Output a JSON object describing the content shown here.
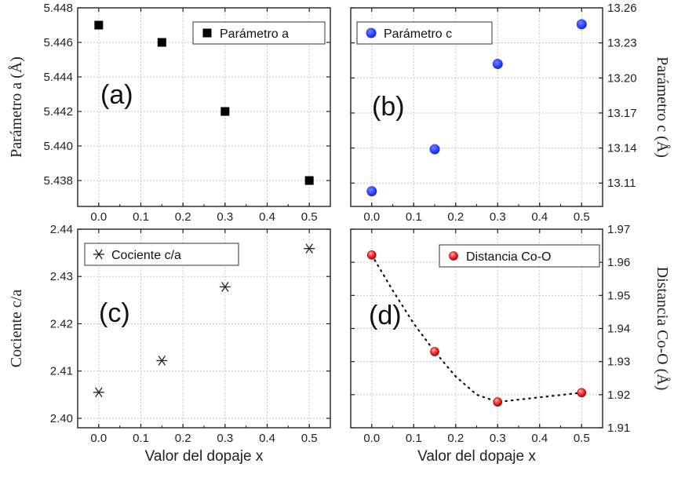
{
  "colors": {
    "panel_a": "#000000",
    "panel_b": "#0b1ff5",
    "panel_c": "#222222",
    "panel_d": "#e02020",
    "grid": "#c8c8c8"
  },
  "chart_data": [
    {
      "id": "a",
      "type": "scatter",
      "panel_label": "(a)",
      "marker": "square",
      "series": [
        {
          "name": "Parámetro a",
          "x": [
            0.0,
            0.15,
            0.3,
            0.5
          ],
          "y": [
            5.447,
            5.446,
            5.442,
            5.438
          ]
        }
      ],
      "xlabel": "",
      "ylabel": "Parámetro a (Å)",
      "xlim": [
        -0.05,
        0.55
      ],
      "ylim": [
        5.4365,
        5.448
      ],
      "xticks": [
        "0.0",
        "0.1",
        "0.2",
        "0.3",
        "0.4",
        "0.5"
      ],
      "yticks": [
        "5.438",
        "5.440",
        "5.442",
        "5.444",
        "5.446",
        "5.448"
      ],
      "ytick_values": [
        5.438,
        5.44,
        5.442,
        5.444,
        5.446,
        5.448
      ],
      "y_axis_side": "left",
      "grid": true,
      "legend": "top-right"
    },
    {
      "id": "b",
      "type": "scatter",
      "panel_label": "(b)",
      "marker": "circle",
      "series": [
        {
          "name": "Parámetro c",
          "x": [
            0.0,
            0.15,
            0.3,
            0.5
          ],
          "y": [
            13.103,
            13.139,
            13.212,
            13.246
          ]
        }
      ],
      "xlabel": "",
      "ylabel": "Parámetro c (Å)",
      "xlim": [
        -0.05,
        0.55
      ],
      "ylim": [
        13.09,
        13.26
      ],
      "xticks": [
        "0.0",
        "0.1",
        "0.2",
        "0.3",
        "0.4",
        "0.5"
      ],
      "yticks": [
        "13.11",
        "13.14",
        "13.17",
        "13.20",
        "13.23",
        "13.26"
      ],
      "ytick_values": [
        13.11,
        13.14,
        13.17,
        13.2,
        13.23,
        13.26
      ],
      "y_axis_side": "right",
      "grid": true,
      "legend": "top-left"
    },
    {
      "id": "c",
      "type": "scatter",
      "panel_label": "(c)",
      "marker": "asterisk",
      "series": [
        {
          "name": "Cociente c/a",
          "x": [
            0.0,
            0.15,
            0.3,
            0.5
          ],
          "y": [
            2.4055,
            2.4122,
            2.4278,
            2.4359
          ]
        }
      ],
      "xlabel": "Valor del dopaje x",
      "ylabel": "Cociente c/a",
      "xlim": [
        -0.05,
        0.55
      ],
      "ylim": [
        2.398,
        2.44
      ],
      "xticks": [
        "0.0",
        "0.1",
        "0.2",
        "0.3",
        "0.4",
        "0.5"
      ],
      "yticks": [
        "2.40",
        "2.41",
        "2.42",
        "2.43",
        "2.44"
      ],
      "ytick_values": [
        2.4,
        2.41,
        2.42,
        2.43,
        2.44
      ],
      "y_axis_side": "left",
      "grid": true,
      "legend": "top-left"
    },
    {
      "id": "d",
      "type": "scatter",
      "panel_label": "(d)",
      "marker": "sphere",
      "series": [
        {
          "name": "Distancia Co-O",
          "x": [
            0.0,
            0.15,
            0.3,
            0.5
          ],
          "y": [
            1.9622,
            1.933,
            1.9178,
            1.9206
          ]
        }
      ],
      "trend_line": {
        "style": "dotted",
        "x": [
          0.0,
          0.05,
          0.1,
          0.15,
          0.2,
          0.25,
          0.3,
          0.35,
          0.4,
          0.45,
          0.5
        ],
        "y": [
          1.9622,
          1.9515,
          1.9415,
          1.933,
          1.9255,
          1.92,
          1.9178,
          1.9185,
          1.9192,
          1.9199,
          1.9206
        ]
      },
      "xlabel": "Valor del dopaje x",
      "ylabel": "Distancia Co-O (Å)",
      "xlim": [
        -0.05,
        0.55
      ],
      "ylim": [
        1.91,
        1.97
      ],
      "xticks": [
        "0.0",
        "0.1",
        "0.2",
        "0.3",
        "0.4",
        "0.5"
      ],
      "yticks": [
        "1.91",
        "1.92",
        "1.93",
        "1.94",
        "1.95",
        "1.96",
        "1.97"
      ],
      "ytick_values": [
        1.91,
        1.92,
        1.93,
        1.94,
        1.95,
        1.96,
        1.97
      ],
      "y_axis_side": "right",
      "grid": true,
      "legend": "top-right"
    }
  ]
}
